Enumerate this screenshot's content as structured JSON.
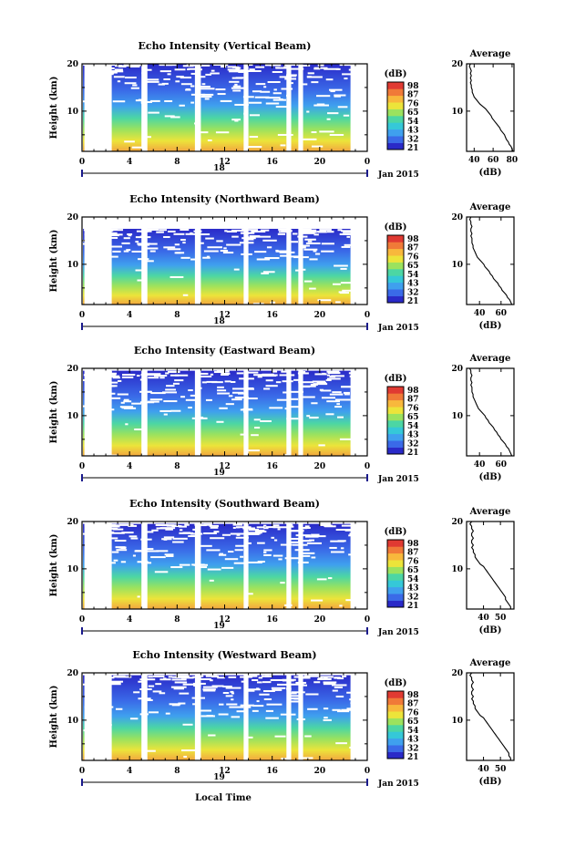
{
  "figure": {
    "xlabel": "Local Time"
  },
  "panels": [
    {
      "title": "Echo Intensity (Vertical Beam)",
      "date_day": "18",
      "date_label": "Jan 2015",
      "avg_title": "Average",
      "avg_xticks": [
        "40",
        "60",
        "80"
      ],
      "avg_xlim": [
        32,
        82
      ]
    },
    {
      "title": "Echo Intensity (Northward Beam)",
      "date_day": "18",
      "date_label": "Jan 2015",
      "avg_title": "Average",
      "avg_xticks": [
        "40",
        "60"
      ],
      "avg_xlim": [
        28,
        72
      ]
    },
    {
      "title": "Echo Intensity (Eastward Beam)",
      "date_day": "19",
      "date_label": "Jan 2015",
      "avg_title": "Average",
      "avg_xticks": [
        "40",
        "60"
      ],
      "avg_xlim": [
        28,
        72
      ]
    },
    {
      "title": "Echo Intensity (Southward Beam)",
      "date_day": "19",
      "date_label": "Jan 2015",
      "avg_title": "Average",
      "avg_xticks": [
        "40",
        "50"
      ],
      "avg_xlim": [
        30,
        58
      ]
    },
    {
      "title": "Echo Intensity (Westward Beam)",
      "date_day": "19",
      "date_label": "Jan 2015",
      "avg_title": "Average",
      "avg_xticks": [
        "40",
        "50"
      ],
      "avg_xlim": [
        30,
        58
      ]
    }
  ],
  "colorbar": {
    "unit": "(dB)",
    "ticks": [
      "98",
      "87",
      "76",
      "65",
      "54",
      "43",
      "32",
      "21"
    ],
    "colors": [
      "#2a2ac8",
      "#3a6ae8",
      "#3fa0ee",
      "#35c8d8",
      "#4cd6a4",
      "#9be25e",
      "#ece43a",
      "#f8b83c",
      "#f07a38",
      "#e03a32"
    ]
  },
  "chart_data": [
    {
      "type": "heatmap",
      "title": "Echo Intensity (Vertical Beam)",
      "xlabel": "Local Time",
      "ylabel": "Height (km)",
      "x_ticks": [
        "0",
        "4",
        "8",
        "12",
        "16",
        "20",
        "0"
      ],
      "y_ticks": [
        "10",
        "20"
      ],
      "xlim": [
        0,
        24
      ],
      "ylim": [
        1.5,
        20
      ],
      "colorbar_ticks": [
        98,
        87,
        76,
        65,
        54,
        43,
        32,
        21
      ],
      "colorbar_label": "(dB)",
      "data_gaps_hours": [
        [
          0.2,
          2.5
        ],
        [
          5.0,
          5.5
        ],
        [
          9.5,
          10.0
        ],
        [
          13.6,
          14.0
        ],
        [
          17.2,
          17.6
        ],
        [
          18.2,
          18.6
        ]
      ],
      "data_end_hour": 22.6,
      "top_km": 20
    },
    {
      "type": "heatmap",
      "title": "Echo Intensity (Northward Beam)",
      "xlabel": "Local Time",
      "ylabel": "Height (km)",
      "x_ticks": [
        "0",
        "4",
        "8",
        "12",
        "16",
        "20",
        "0"
      ],
      "y_ticks": [
        "10",
        "20"
      ],
      "xlim": [
        0,
        24
      ],
      "ylim": [
        1.5,
        20
      ],
      "colorbar_ticks": [
        98,
        87,
        76,
        65,
        54,
        43,
        32,
        21
      ],
      "colorbar_label": "(dB)",
      "data_gaps_hours": [
        [
          0.2,
          2.5
        ],
        [
          5.0,
          5.5
        ],
        [
          9.5,
          10.0
        ],
        [
          13.6,
          14.0
        ],
        [
          17.2,
          17.6
        ],
        [
          18.2,
          18.6
        ]
      ],
      "data_end_hour": 22.6,
      "top_km": 17.5
    },
    {
      "type": "heatmap",
      "title": "Echo Intensity (Eastward Beam)",
      "xlabel": "Local Time",
      "ylabel": "Height (km)",
      "x_ticks": [
        "0",
        "4",
        "8",
        "12",
        "16",
        "20",
        "0"
      ],
      "y_ticks": [
        "10",
        "20"
      ],
      "xlim": [
        0,
        24
      ],
      "ylim": [
        1.5,
        20
      ],
      "colorbar_ticks": [
        98,
        87,
        76,
        65,
        54,
        43,
        32,
        21
      ],
      "colorbar_label": "(dB)",
      "data_gaps_hours": [
        [
          0.2,
          2.5
        ],
        [
          5.0,
          5.5
        ],
        [
          9.5,
          10.0
        ],
        [
          13.6,
          14.0
        ],
        [
          17.2,
          17.6
        ],
        [
          18.2,
          18.6
        ]
      ],
      "data_end_hour": 22.6,
      "top_km": 19.5
    },
    {
      "type": "heatmap",
      "title": "Echo Intensity (Southward Beam)",
      "xlabel": "Local Time",
      "ylabel": "Height (km)",
      "x_ticks": [
        "0",
        "4",
        "8",
        "12",
        "16",
        "20",
        "0"
      ],
      "y_ticks": [
        "10",
        "20"
      ],
      "xlim": [
        0,
        24
      ],
      "ylim": [
        1.5,
        20
      ],
      "colorbar_ticks": [
        98,
        87,
        76,
        65,
        54,
        43,
        32,
        21
      ],
      "colorbar_label": "(dB)",
      "data_gaps_hours": [
        [
          0.2,
          2.5
        ],
        [
          5.0,
          5.5
        ],
        [
          9.5,
          10.0
        ],
        [
          13.6,
          14.0
        ],
        [
          17.2,
          17.6
        ],
        [
          18.2,
          18.6
        ]
      ],
      "data_end_hour": 22.6,
      "top_km": 19.5
    },
    {
      "type": "heatmap",
      "title": "Echo Intensity (Westward Beam)",
      "xlabel": "Local Time",
      "ylabel": "Height (km)",
      "x_ticks": [
        "0",
        "4",
        "8",
        "12",
        "16",
        "20",
        "0"
      ],
      "y_ticks": [
        "10",
        "20"
      ],
      "xlim": [
        0,
        24
      ],
      "ylim": [
        1.5,
        20
      ],
      "colorbar_ticks": [
        98,
        87,
        76,
        65,
        54,
        43,
        32,
        21
      ],
      "colorbar_label": "(dB)",
      "data_gaps_hours": [
        [
          0.2,
          2.5
        ],
        [
          5.0,
          5.5
        ],
        [
          9.5,
          10.0
        ],
        [
          13.6,
          14.0
        ],
        [
          17.2,
          17.6
        ],
        [
          18.2,
          18.6
        ]
      ],
      "data_end_hour": 22.6,
      "top_km": 19.5
    },
    {
      "type": "line",
      "title": "Average",
      "xlabel": "(dB)",
      "ylabel": "",
      "y_ticks": [
        "10",
        "20"
      ],
      "ylim": [
        1.5,
        20
      ],
      "xlim": [
        32,
        82
      ],
      "series": [
        {
          "x": [
            81,
            80,
            79,
            77,
            76,
            74,
            73,
            72,
            70,
            68,
            67,
            65,
            63,
            61,
            59,
            58,
            56,
            54,
            52,
            49,
            46,
            44,
            42,
            40,
            39,
            38,
            38,
            37,
            37,
            36,
            37,
            36,
            37,
            36,
            37,
            36,
            35,
            36,
            35
          ],
          "y": [
            1.5,
            2,
            2.5,
            3,
            3.5,
            4,
            4.5,
            5,
            5.5,
            6,
            6.5,
            7,
            7.5,
            8,
            8.5,
            9,
            9.5,
            10,
            10.5,
            11,
            11.5,
            12,
            12.5,
            13,
            13.5,
            14,
            14.5,
            15,
            15.5,
            16,
            16.5,
            17,
            17.5,
            18,
            18.5,
            19,
            19.5,
            20,
            20
          ]
        }
      ]
    },
    {
      "type": "line",
      "title": "Average",
      "xlabel": "(dB)",
      "ylabel": "",
      "y_ticks": [
        "10",
        "20"
      ],
      "ylim": [
        1.5,
        20
      ],
      "xlim": [
        28,
        72
      ],
      "series": [
        {
          "x": [
            70,
            69,
            68,
            66,
            65,
            63,
            61,
            60,
            58,
            57,
            55,
            53,
            52,
            50,
            49,
            47,
            45,
            44,
            42,
            40,
            38,
            37,
            36,
            35,
            34,
            34,
            33,
            33,
            33,
            32,
            33,
            32,
            32,
            33,
            32,
            32,
            31,
            32,
            32
          ],
          "y": [
            1.5,
            2,
            2.5,
            3,
            3.5,
            4,
            4.5,
            5,
            5.5,
            6,
            6.5,
            7,
            7.5,
            8,
            8.5,
            9,
            9.5,
            10,
            10.5,
            11,
            11.5,
            12,
            12.5,
            13,
            13.5,
            14,
            14.5,
            15,
            15.5,
            16,
            16.5,
            17,
            17.5,
            18,
            18.5,
            19,
            19.5,
            20,
            20
          ]
        }
      ]
    },
    {
      "type": "line",
      "title": "Average",
      "xlabel": "(dB)",
      "ylabel": "",
      "y_ticks": [
        "10",
        "20"
      ],
      "ylim": [
        1.5,
        20
      ],
      "xlim": [
        28,
        72
      ],
      "series": [
        {
          "x": [
            70,
            69,
            68,
            67,
            65,
            64,
            62,
            60,
            59,
            57,
            56,
            54,
            53,
            51,
            49,
            48,
            46,
            45,
            43,
            41,
            39,
            38,
            37,
            36,
            35,
            34,
            34,
            33,
            33,
            33,
            32,
            33,
            32,
            32,
            33,
            32,
            32,
            31,
            32
          ],
          "y": [
            1.5,
            2,
            2.5,
            3,
            3.5,
            4,
            4.5,
            5,
            5.5,
            6,
            6.5,
            7,
            7.5,
            8,
            8.5,
            9,
            9.5,
            10,
            10.5,
            11,
            11.5,
            12,
            12.5,
            13,
            13.5,
            14,
            14.5,
            15,
            15.5,
            16,
            16.5,
            17,
            17.5,
            18,
            18.5,
            19,
            19.5,
            20,
            20
          ]
        }
      ]
    },
    {
      "type": "line",
      "title": "Average",
      "xlabel": "(dB)",
      "ylabel": "",
      "y_ticks": [
        "10",
        "20"
      ],
      "ylim": [
        1.5,
        20
      ],
      "xlim": [
        30,
        58
      ],
      "series": [
        {
          "x": [
            56,
            56,
            55,
            54,
            53,
            53,
            52,
            51,
            50,
            49,
            48,
            47,
            46,
            45,
            44,
            43,
            42,
            41,
            40,
            38,
            37,
            36,
            35,
            35,
            34,
            34,
            33,
            34,
            33,
            33,
            34,
            33,
            33,
            34,
            33,
            33,
            32,
            33,
            33
          ],
          "y": [
            1.5,
            2,
            2.5,
            3,
            3.5,
            4,
            4.5,
            5,
            5.5,
            6,
            6.5,
            7,
            7.5,
            8,
            8.5,
            9,
            9.5,
            10,
            10.5,
            11,
            11.5,
            12,
            12.5,
            13,
            13.5,
            14,
            14.5,
            15,
            15.5,
            16,
            16.5,
            17,
            17.5,
            18,
            18.5,
            19,
            19.5,
            20,
            20
          ]
        }
      ]
    },
    {
      "type": "line",
      "title": "Average",
      "xlabel": "(dB)",
      "ylabel": "",
      "y_ticks": [
        "10",
        "20"
      ],
      "ylim": [
        1.5,
        20
      ],
      "xlim": [
        30,
        58
      ],
      "series": [
        {
          "x": [
            56,
            56,
            55,
            55,
            54,
            53,
            52,
            51,
            50,
            49,
            48,
            47,
            46,
            45,
            44,
            43,
            42,
            41,
            40,
            38,
            37,
            36,
            35,
            35,
            34,
            34,
            33,
            34,
            33,
            33,
            34,
            33,
            33,
            34,
            33,
            33,
            32,
            33,
            33
          ],
          "y": [
            1.5,
            2,
            2.5,
            3,
            3.5,
            4,
            4.5,
            5,
            5.5,
            6,
            6.5,
            7,
            7.5,
            8,
            8.5,
            9,
            9.5,
            10,
            10.5,
            11,
            11.5,
            12,
            12.5,
            13,
            13.5,
            14,
            14.5,
            15,
            15.5,
            16,
            16.5,
            17,
            17.5,
            18,
            18.5,
            19,
            19.5,
            20,
            20
          ]
        }
      ]
    }
  ]
}
